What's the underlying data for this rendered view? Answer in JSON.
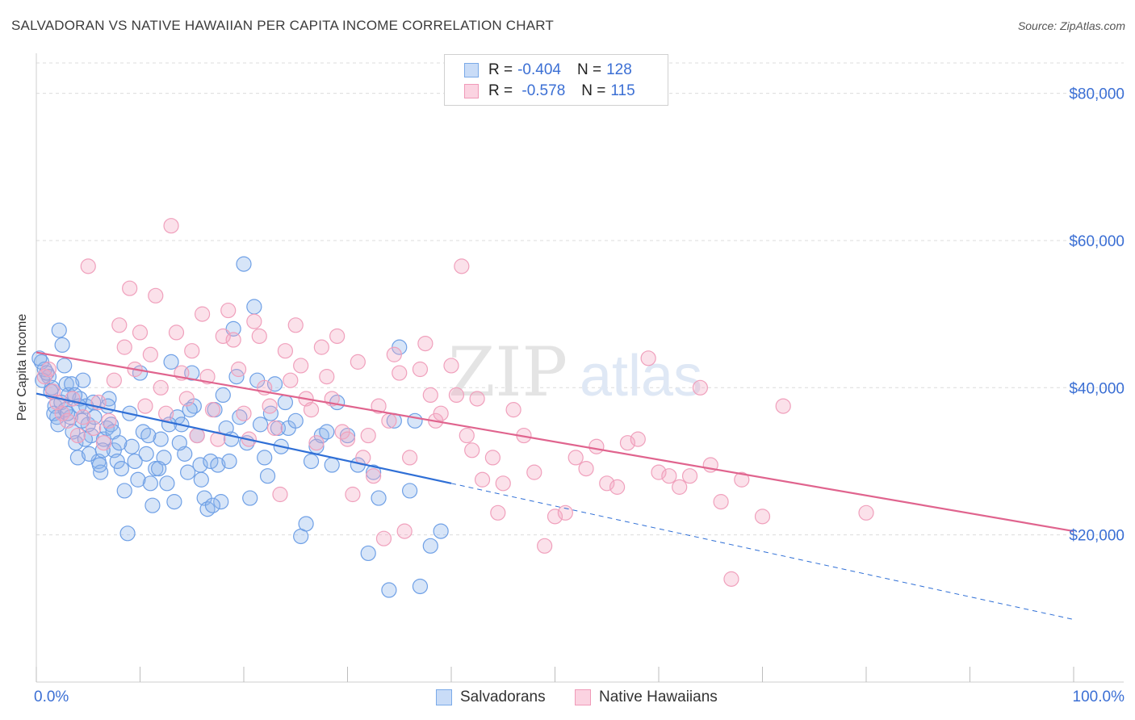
{
  "title": "SALVADORAN VS NATIVE HAWAIIAN PER CAPITA INCOME CORRELATION CHART",
  "source": "Source: ZipAtlas.com",
  "watermark": {
    "part1": "ZIP",
    "part2": "atlas"
  },
  "legend": {
    "rows": [
      {
        "r_label": "R =",
        "r_value": "-0.404",
        "n_label": "N =",
        "n_value": "128",
        "color": "#7aaae8"
      },
      {
        "r_label": "R =",
        "r_value": " -0.578",
        "n_label": "N =",
        "n_value": "115",
        "color": "#f09ab8"
      }
    ]
  },
  "chart_data": {
    "type": "scatter",
    "title": "SALVADORAN VS NATIVE HAWAIIAN PER CAPITA INCOME CORRELATION CHART",
    "xlabel": "",
    "ylabel": "Per Capita Income",
    "xlim": [
      0,
      100
    ],
    "ylim": [
      0,
      85000
    ],
    "x_tick_labels": [
      "0.0%",
      "100.0%"
    ],
    "y_ticks": [
      20000,
      40000,
      60000,
      80000
    ],
    "y_tick_labels": [
      "$20,000",
      "$40,000",
      "$60,000",
      "$80,000"
    ],
    "grid": true,
    "legend_position": "top-center",
    "series": [
      {
        "name": "Salvadorans",
        "color": "#6fa0e6",
        "line_color": "#2f6fd6",
        "trend": {
          "x0": 0,
          "y0": 39200,
          "x1": 40,
          "y1": 27000,
          "dashed_to_x": 100,
          "dashed_to_y": 8500
        },
        "points": [
          [
            0.5,
            43500
          ],
          [
            0.8,
            42500
          ],
          [
            1.2,
            41500
          ],
          [
            1.5,
            40000
          ],
          [
            1.8,
            37500
          ],
          [
            2,
            36000
          ],
          [
            2.2,
            47800
          ],
          [
            2.5,
            45800
          ],
          [
            2.7,
            43000
          ],
          [
            2.9,
            40500
          ],
          [
            3.1,
            39000
          ],
          [
            3.3,
            36000
          ],
          [
            3.5,
            34000
          ],
          [
            3.8,
            32500
          ],
          [
            4,
            30500
          ],
          [
            4.2,
            38500
          ],
          [
            4.5,
            41000
          ],
          [
            4.8,
            37500
          ],
          [
            5,
            35000
          ],
          [
            5.3,
            33500
          ],
          [
            5.6,
            36000
          ],
          [
            6,
            30000
          ],
          [
            6.2,
            28500
          ],
          [
            6.5,
            33000
          ],
          [
            6.8,
            34500
          ],
          [
            7,
            38500
          ],
          [
            7.2,
            35000
          ],
          [
            7.5,
            31500
          ],
          [
            7.8,
            30000
          ],
          [
            8.2,
            29000
          ],
          [
            8.5,
            26000
          ],
          [
            8.8,
            20200
          ],
          [
            9,
            36500
          ],
          [
            9.2,
            32000
          ],
          [
            9.5,
            30000
          ],
          [
            10,
            42000
          ],
          [
            10.3,
            34000
          ],
          [
            10.6,
            31000
          ],
          [
            11,
            27000
          ],
          [
            11.2,
            24000
          ],
          [
            11.5,
            29000
          ],
          [
            12,
            33000
          ],
          [
            12.3,
            30500
          ],
          [
            12.6,
            27000
          ],
          [
            13,
            43500
          ],
          [
            13.3,
            24500
          ],
          [
            13.6,
            36000
          ],
          [
            14,
            35000
          ],
          [
            14.3,
            31000
          ],
          [
            14.6,
            28500
          ],
          [
            15,
            42000
          ],
          [
            15.2,
            37500
          ],
          [
            15.5,
            33500
          ],
          [
            15.8,
            29500
          ],
          [
            16.2,
            25000
          ],
          [
            16.5,
            23500
          ],
          [
            16.8,
            30000
          ],
          [
            17.2,
            37000
          ],
          [
            17.5,
            29500
          ],
          [
            17.8,
            24500
          ],
          [
            18,
            39000
          ],
          [
            18.3,
            34500
          ],
          [
            18.6,
            30000
          ],
          [
            19,
            48000
          ],
          [
            19.3,
            41500
          ],
          [
            19.6,
            36000
          ],
          [
            20,
            56800
          ],
          [
            20.3,
            32500
          ],
          [
            20.6,
            25000
          ],
          [
            21,
            51000
          ],
          [
            21.3,
            41000
          ],
          [
            21.6,
            35000
          ],
          [
            22,
            30500
          ],
          [
            22.3,
            28000
          ],
          [
            22.6,
            36500
          ],
          [
            23,
            40500
          ],
          [
            23.3,
            34500
          ],
          [
            23.6,
            32000
          ],
          [
            24,
            38000
          ],
          [
            24.3,
            34500
          ],
          [
            25,
            35500
          ],
          [
            25.5,
            19800
          ],
          [
            26,
            21500
          ],
          [
            26.5,
            30000
          ],
          [
            27,
            32000
          ],
          [
            27.5,
            33500
          ],
          [
            28,
            34000
          ],
          [
            28.5,
            29500
          ],
          [
            29,
            38000
          ],
          [
            30,
            33500
          ],
          [
            31,
            29500
          ],
          [
            32,
            17500
          ],
          [
            32.5,
            28500
          ],
          [
            33,
            25000
          ],
          [
            34,
            12500
          ],
          [
            34.5,
            35500
          ],
          [
            35,
            45500
          ],
          [
            36,
            26000
          ],
          [
            36.5,
            35500
          ],
          [
            37,
            13000
          ],
          [
            38,
            18500
          ],
          [
            39,
            20500
          ],
          [
            0.3,
            44000
          ],
          [
            0.6,
            41000
          ],
          [
            1,
            42000
          ],
          [
            1.4,
            39500
          ],
          [
            1.7,
            36500
          ],
          [
            2.1,
            35000
          ],
          [
            2.4,
            38000
          ],
          [
            2.8,
            37000
          ],
          [
            3,
            36500
          ],
          [
            3.4,
            40500
          ],
          [
            3.7,
            39000
          ],
          [
            4.1,
            37500
          ],
          [
            4.4,
            35500
          ],
          [
            4.7,
            33000
          ],
          [
            5.1,
            31000
          ],
          [
            5.5,
            38000
          ],
          [
            6.1,
            29500
          ],
          [
            6.4,
            31500
          ],
          [
            6.9,
            37500
          ],
          [
            7.4,
            34000
          ],
          [
            8,
            32500
          ],
          [
            9.8,
            27500
          ],
          [
            10.8,
            33500
          ],
          [
            11.8,
            29000
          ],
          [
            12.8,
            35000
          ],
          [
            13.8,
            32500
          ],
          [
            14.8,
            37000
          ],
          [
            15.9,
            27500
          ],
          [
            17,
            24000
          ],
          [
            18.8,
            33000
          ]
        ]
      },
      {
        "name": "Native Hawaiians",
        "color": "#f0a0bc",
        "line_color": "#e0648e",
        "trend": {
          "x0": 0,
          "y0": 44800,
          "x1": 100,
          "y1": 20500
        },
        "points": [
          [
            0.8,
            41500
          ],
          [
            1.2,
            42500
          ],
          [
            1.6,
            39500
          ],
          [
            2,
            38000
          ],
          [
            2.5,
            36500
          ],
          [
            3,
            35500
          ],
          [
            3.5,
            38500
          ],
          [
            4,
            33500
          ],
          [
            4.5,
            36000
          ],
          [
            5,
            56500
          ],
          [
            5.5,
            34500
          ],
          [
            6,
            38000
          ],
          [
            6.5,
            32500
          ],
          [
            7,
            35500
          ],
          [
            7.5,
            41000
          ],
          [
            8,
            48500
          ],
          [
            8.5,
            45500
          ],
          [
            9,
            53500
          ],
          [
            9.5,
            42500
          ],
          [
            10,
            47500
          ],
          [
            10.5,
            37500
          ],
          [
            11,
            44500
          ],
          [
            11.5,
            52500
          ],
          [
            12,
            40000
          ],
          [
            12.5,
            36500
          ],
          [
            13,
            62000
          ],
          [
            13.5,
            47500
          ],
          [
            14,
            42000
          ],
          [
            14.5,
            38500
          ],
          [
            15,
            45000
          ],
          [
            15.5,
            33500
          ],
          [
            16,
            50000
          ],
          [
            16.5,
            41500
          ],
          [
            17,
            37000
          ],
          [
            17.5,
            33000
          ],
          [
            18,
            47000
          ],
          [
            18.5,
            50500
          ],
          [
            19,
            46500
          ],
          [
            19.5,
            42500
          ],
          [
            20,
            36500
          ],
          [
            20.5,
            33000
          ],
          [
            21,
            49000
          ],
          [
            21.5,
            47000
          ],
          [
            22,
            40000
          ],
          [
            22.5,
            37500
          ],
          [
            23,
            34500
          ],
          [
            23.5,
            25500
          ],
          [
            24,
            45000
          ],
          [
            24.5,
            41000
          ],
          [
            25,
            48500
          ],
          [
            25.5,
            43000
          ],
          [
            26,
            38500
          ],
          [
            26.5,
            37000
          ],
          [
            27,
            32500
          ],
          [
            27.5,
            45500
          ],
          [
            28,
            41500
          ],
          [
            28.5,
            38500
          ],
          [
            29,
            47000
          ],
          [
            29.5,
            34000
          ],
          [
            30,
            33000
          ],
          [
            30.5,
            25500
          ],
          [
            31,
            43500
          ],
          [
            31.5,
            30500
          ],
          [
            32,
            33500
          ],
          [
            32.5,
            28000
          ],
          [
            33,
            37500
          ],
          [
            33.5,
            19500
          ],
          [
            34,
            35500
          ],
          [
            34.5,
            44500
          ],
          [
            35,
            42000
          ],
          [
            35.5,
            20500
          ],
          [
            36,
            30500
          ],
          [
            37,
            42500
          ],
          [
            37.5,
            46000
          ],
          [
            38,
            39000
          ],
          [
            38.5,
            35500
          ],
          [
            39,
            36500
          ],
          [
            40,
            43000
          ],
          [
            40.5,
            39000
          ],
          [
            41,
            56500
          ],
          [
            41.5,
            33500
          ],
          [
            42,
            31500
          ],
          [
            42.5,
            38500
          ],
          [
            43,
            27500
          ],
          [
            44,
            30500
          ],
          [
            44.5,
            23000
          ],
          [
            45,
            27000
          ],
          [
            46,
            37000
          ],
          [
            47,
            33500
          ],
          [
            48,
            28500
          ],
          [
            49,
            18500
          ],
          [
            50,
            22500
          ],
          [
            51,
            23000
          ],
          [
            52,
            30500
          ],
          [
            53,
            29000
          ],
          [
            54,
            32000
          ],
          [
            55,
            27000
          ],
          [
            56,
            26500
          ],
          [
            57,
            32500
          ],
          [
            58,
            33000
          ],
          [
            59,
            44000
          ],
          [
            60,
            28500
          ],
          [
            61,
            28000
          ],
          [
            62,
            26500
          ],
          [
            63,
            28000
          ],
          [
            64,
            40000
          ],
          [
            65,
            29500
          ],
          [
            66,
            24500
          ],
          [
            67,
            14000
          ],
          [
            68,
            27500
          ],
          [
            70,
            22500
          ],
          [
            72,
            37500
          ],
          [
            80,
            23000
          ]
        ]
      }
    ]
  },
  "bottom_legend": [
    "Salvadorans",
    "Native Hawaiians"
  ]
}
